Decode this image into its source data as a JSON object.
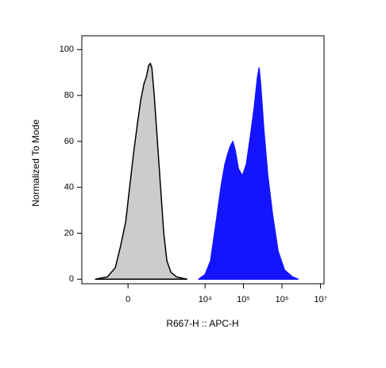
{
  "chart_data": {
    "type": "area",
    "xlabel": "R667-H :: APC-H",
    "ylabel": "Normalized To Mode",
    "xscale": "logicle",
    "xlim": [
      -1500,
      12400000
    ],
    "ylim": [
      -2,
      106
    ],
    "xticks": [
      0,
      {
        "value": 10000,
        "label": "10⁴"
      },
      {
        "value": 100000,
        "label": "10⁵"
      },
      {
        "value": 1000000,
        "label": "10⁶"
      },
      {
        "value": 10000000,
        "label": "10⁷"
      }
    ],
    "yticks": [
      0,
      20,
      40,
      60,
      80,
      100
    ],
    "series": [
      {
        "color": "#cccccc",
        "x": [
          -606,
          -246,
          -115,
          -54,
          -15,
          10,
          40,
          77,
          115,
          160,
          200,
          246,
          281,
          319,
          383,
          484,
          606,
          754,
          930,
          1209,
          1727,
          3292
        ],
        "values": [
          0,
          1,
          5,
          15,
          25,
          40,
          55,
          68,
          78,
          85,
          88,
          93,
          94,
          92,
          80,
          60,
          40,
          20,
          8,
          3,
          1,
          0
        ]
      },
      {
        "color": "#1414ff",
        "x": [
          6808,
          10000,
          13940,
          19550,
          26000,
          32950,
          39900,
          46050,
          53100,
          61300,
          74100,
          93900,
          119100,
          151000,
          191500,
          231800,
          254800,
          280000,
          339000,
          429800,
          571800,
          796700,
          1164500,
          1872000,
          2608000
        ],
        "values": [
          0,
          2,
          8,
          25,
          40,
          50,
          55,
          58,
          60,
          56,
          48,
          45,
          50,
          62,
          75,
          88,
          92,
          85,
          65,
          45,
          28,
          12,
          4,
          1,
          0
        ]
      }
    ]
  }
}
